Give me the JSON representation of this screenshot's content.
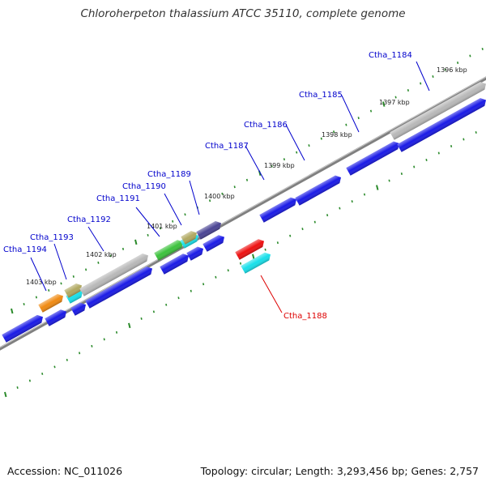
{
  "title": "Chloroherpeton thalassium ATCC 35110, complete genome",
  "footer": {
    "accession": "Accession: NC_011026",
    "info": "Topology: circular; Length: 3,293,456 bp; Genes: 2,757"
  },
  "colors": {
    "blue": "#1a1ae6",
    "gray": "#b8b8b8",
    "orange": "#f08a12",
    "green": "#3cc23c",
    "cyan": "#18e0ea",
    "tan": "#b0a860",
    "purple": "#4a4494",
    "red": "#ee1010",
    "backbone": "#808080",
    "tick": "#2a8a2a",
    "label_blue": "#0000cc",
    "label_red": "#dd0000"
  },
  "kbp_labels": [
    "1396 kbp",
    "1397 kbp",
    "1398 kbp",
    "1399 kbp",
    "1400 kbp",
    "1401 kbp",
    "1402 kbp",
    "1403 kbp"
  ],
  "gene_labels": [
    {
      "name": "Ctha_1184",
      "color": "blue"
    },
    {
      "name": "Ctha_1185",
      "color": "blue"
    },
    {
      "name": "Ctha_1186",
      "color": "blue"
    },
    {
      "name": "Ctha_1187",
      "color": "blue"
    },
    {
      "name": "Ctha_1188",
      "color": "red"
    },
    {
      "name": "Ctha_1189",
      "color": "blue"
    },
    {
      "name": "Ctha_1190",
      "color": "blue"
    },
    {
      "name": "Ctha_1191",
      "color": "blue"
    },
    {
      "name": "Ctha_1192",
      "color": "blue"
    },
    {
      "name": "Ctha_1193",
      "color": "blue"
    },
    {
      "name": "Ctha_1194",
      "color": "blue"
    }
  ]
}
